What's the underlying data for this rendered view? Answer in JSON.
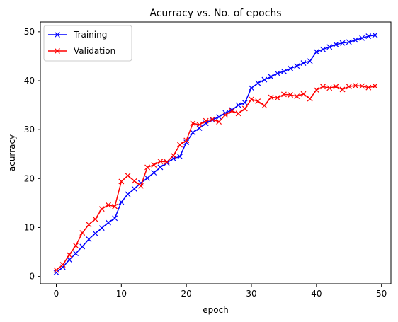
{
  "chart_data": {
    "type": "line",
    "title": "Acurracy vs. No. of epochs",
    "xlabel": "epoch",
    "ylabel": "acurracy",
    "xlim": [
      -2.45,
      51.45
    ],
    "ylim": [
      -1.5,
      52.0
    ],
    "xticks": [
      0,
      10,
      20,
      30,
      40,
      50
    ],
    "yticks": [
      0,
      10,
      20,
      30,
      40,
      50
    ],
    "grid": false,
    "legend_position": "top-left",
    "x": [
      0,
      1,
      2,
      3,
      4,
      5,
      6,
      7,
      8,
      9,
      10,
      11,
      12,
      13,
      14,
      15,
      16,
      17,
      18,
      19,
      20,
      21,
      22,
      23,
      24,
      25,
      26,
      27,
      28,
      29,
      30,
      31,
      32,
      33,
      34,
      35,
      36,
      37,
      38,
      39,
      40,
      41,
      42,
      43,
      44,
      45,
      46,
      47,
      48,
      49
    ],
    "series": [
      {
        "name": "Training",
        "color": "#0000ff",
        "marker": "x",
        "values": [
          0.8,
          1.9,
          3.4,
          4.7,
          6.1,
          7.6,
          8.8,
          9.9,
          11.0,
          11.9,
          15.2,
          16.8,
          17.9,
          19.1,
          20.1,
          21.2,
          22.3,
          23.2,
          24.1,
          24.5,
          27.4,
          29.4,
          30.3,
          31.3,
          32.0,
          32.6,
          33.4,
          34.0,
          35.0,
          35.5,
          38.5,
          39.5,
          40.2,
          40.8,
          41.5,
          41.9,
          42.5,
          43.0,
          43.6,
          44.0,
          45.9,
          46.4,
          46.9,
          47.4,
          47.7,
          47.9,
          48.3,
          48.7,
          49.1,
          49.3
        ]
      },
      {
        "name": "Validation",
        "color": "#ff0000",
        "marker": "x",
        "values": [
          1.3,
          2.4,
          4.4,
          6.3,
          8.9,
          10.6,
          11.7,
          13.8,
          14.6,
          14.3,
          19.4,
          20.6,
          19.5,
          18.5,
          22.3,
          22.8,
          23.5,
          23.4,
          24.7,
          26.9,
          27.8,
          31.3,
          31.0,
          31.8,
          32.1,
          31.6,
          33.0,
          33.8,
          33.3,
          34.3,
          36.2,
          35.8,
          34.9,
          36.6,
          36.5,
          37.2,
          37.1,
          36.8,
          37.3,
          36.3,
          38.1,
          38.8,
          38.5,
          38.8,
          38.2,
          38.8,
          39.0,
          38.9,
          38.6,
          38.9
        ]
      }
    ]
  }
}
